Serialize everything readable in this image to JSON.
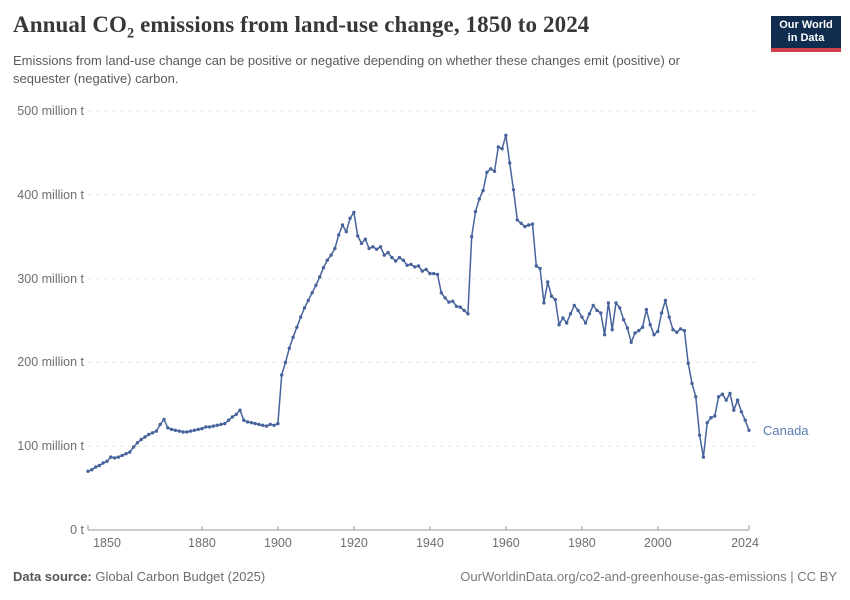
{
  "header": {
    "title_pre": "Annual CO",
    "title_sub": "2",
    "title_post": " emissions from land-use change, 1850 to 2024",
    "subtitle": "Emissions from land-use change can be positive or negative depending on whether these changes emit (positive) or sequester (negative) carbon."
  },
  "logo": {
    "line1": "Our World",
    "line2": "in Data",
    "bg_color": "#102d4f",
    "bar_color": "#cf404a"
  },
  "footer": {
    "source_label": "Data source:",
    "source_value": "Global Carbon Budget (2025)",
    "note": "OurWorldinData.org/co2-and-greenhouse-gas-emissions | CC BY"
  },
  "colors": {
    "grid": "#e2e2e2",
    "axis": "#9a9a9a",
    "tick_label": "#6e6e6e"
  },
  "chart_data": {
    "type": "line",
    "title": "Annual CO2 emissions from land-use change, 1850 to 2024",
    "entity": "Canada",
    "values_unit": "million tonnes CO2 per year",
    "grid": true,
    "legend_position": "end-of-line-label",
    "x_start": 1850,
    "x_end": 2024,
    "ylim": [
      0,
      500
    ],
    "y_ticks": [
      {
        "value": 0,
        "label": "0 t"
      },
      {
        "value": 100,
        "label": "100 million t"
      },
      {
        "value": 200,
        "label": "200 million t"
      },
      {
        "value": 300,
        "label": "300 million t"
      },
      {
        "value": 400,
        "label": "400 million t"
      },
      {
        "value": 500,
        "label": "500 million t"
      }
    ],
    "x_ticks": [
      {
        "year": 1850,
        "label": "1850"
      },
      {
        "year": 1880,
        "label": "1880"
      },
      {
        "year": 1900,
        "label": "1900"
      },
      {
        "year": 1920,
        "label": "1920"
      },
      {
        "year": 1940,
        "label": "1940"
      },
      {
        "year": 1960,
        "label": "1960"
      },
      {
        "year": 1980,
        "label": "1980"
      },
      {
        "year": 2000,
        "label": "2000"
      },
      {
        "year": 2024,
        "label": "2024"
      }
    ],
    "series": [
      {
        "name": "Canada",
        "color": "#47639c",
        "label_color": "#5b7db1",
        "values": [
          70,
          72,
          75,
          77,
          80,
          82,
          87,
          86,
          87,
          89,
          91,
          93,
          99,
          104,
          108,
          111,
          114,
          116,
          118,
          126,
          132,
          122,
          120,
          119,
          118,
          117,
          117,
          118,
          119,
          120,
          121,
          123,
          123,
          124,
          125,
          126,
          127,
          131,
          135,
          138,
          143,
          131,
          129,
          128,
          127,
          126,
          125,
          124,
          126,
          125,
          127,
          185,
          200,
          217,
          230,
          242,
          254,
          265,
          274,
          283,
          292,
          302,
          313,
          322,
          328,
          336,
          352,
          364,
          356,
          372,
          379,
          351,
          342,
          347,
          336,
          338,
          335,
          338,
          328,
          331,
          325,
          321,
          325,
          322,
          316,
          317,
          314,
          315,
          309,
          311,
          306,
          306,
          305,
          283,
          277,
          272,
          273,
          267,
          266,
          262,
          258,
          350,
          380,
          395,
          405,
          427,
          431,
          428,
          457,
          455,
          471,
          438,
          406,
          370,
          366,
          362,
          364,
          365,
          315,
          312,
          271,
          296,
          279,
          275,
          245,
          253,
          247,
          258,
          268,
          262,
          254,
          247,
          258,
          268,
          262,
          259,
          233,
          271,
          239,
          271,
          265,
          251,
          241,
          224,
          235,
          238,
          242,
          263,
          245,
          233,
          237,
          259,
          274,
          254,
          239,
          236,
          240,
          238,
          199,
          175,
          159,
          113,
          87,
          128,
          134,
          136,
          159,
          162,
          155,
          163,
          143,
          155,
          141,
          131,
          119
        ]
      }
    ]
  }
}
